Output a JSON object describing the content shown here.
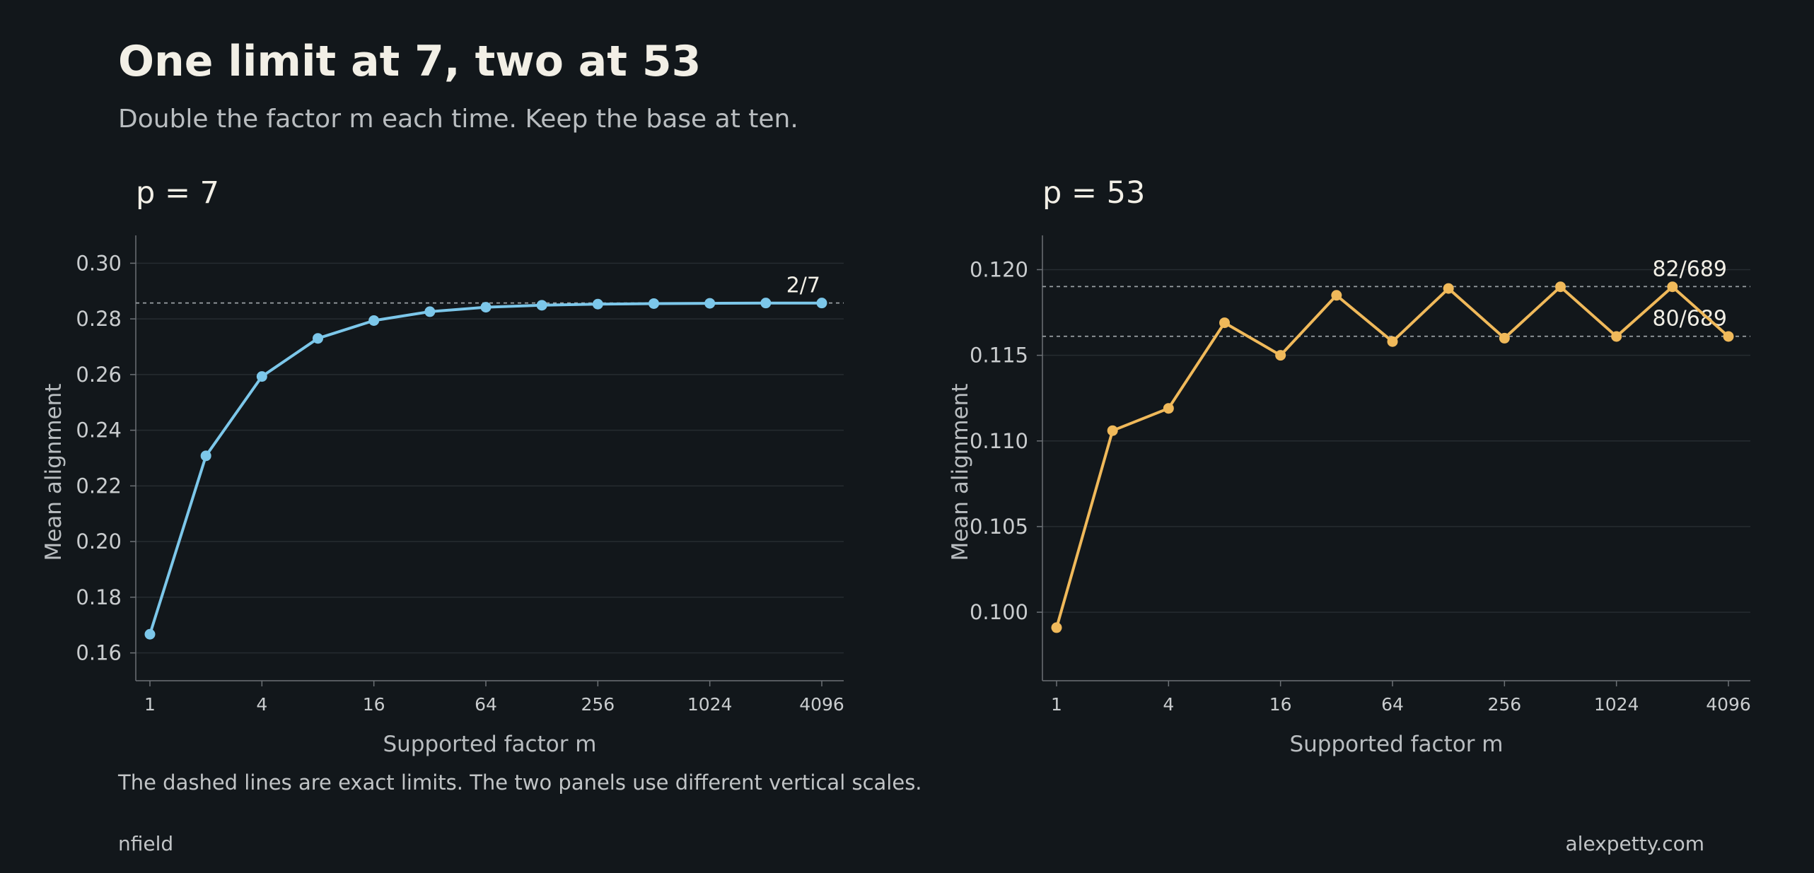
{
  "header": {
    "title": "One limit at 7, two at 53",
    "subtitle": "Double the factor m each time. Keep the base at ten."
  },
  "footer": {
    "note": "The dashed lines are exact limits. The two panels use different vertical scales.",
    "credit_left": "nfield",
    "credit_right": "alexpetty.com"
  },
  "colors": {
    "background": "#12171b",
    "series_p7": "#7cc7ea",
    "series_p53": "#f0b95a",
    "grid": "#262c31",
    "axis": "#6c7176",
    "reference_line": "#9aa0a4"
  },
  "chart_data": [
    {
      "type": "line",
      "title": "p = 7",
      "xlabel": "Supported factor m",
      "ylabel": "Mean alignment",
      "x_scale": "log2",
      "x": [
        1,
        2,
        4,
        8,
        16,
        32,
        64,
        128,
        256,
        512,
        1024,
        2048,
        4096
      ],
      "xticks": [
        1,
        4,
        16,
        64,
        256,
        1024,
        4096
      ],
      "xtick_labels": [
        "1",
        "4",
        "16",
        "64",
        "256",
        "1024",
        "4096"
      ],
      "ylim": [
        0.15,
        0.31
      ],
      "yticks": [
        0.16,
        0.18,
        0.2,
        0.22,
        0.24,
        0.26,
        0.28,
        0.3
      ],
      "ytick_labels": [
        "0.16",
        "0.18",
        "0.20",
        "0.22",
        "0.24",
        "0.26",
        "0.28",
        "0.30"
      ],
      "grid": true,
      "series": [
        {
          "values": [
            0.1667,
            0.2308,
            0.2593,
            0.273,
            0.2794,
            0.2826,
            0.2842,
            0.2849,
            0.2853,
            0.2855,
            0.2856,
            0.2857,
            0.2857
          ]
        }
      ],
      "reference_lines": [
        {
          "label": "2/7",
          "value": 0.285714
        }
      ]
    },
    {
      "type": "line",
      "title": "p = 53",
      "xlabel": "Supported factor m",
      "ylabel": "Mean alignment",
      "x_scale": "log2",
      "x": [
        1,
        2,
        4,
        8,
        16,
        32,
        64,
        128,
        256,
        512,
        1024,
        2048,
        4096
      ],
      "xticks": [
        1,
        4,
        16,
        64,
        256,
        1024,
        4096
      ],
      "xtick_labels": [
        "1",
        "4",
        "16",
        "64",
        "256",
        "1024",
        "4096"
      ],
      "ylim": [
        0.096,
        0.122
      ],
      "yticks": [
        0.1,
        0.105,
        0.11,
        0.115,
        0.12
      ],
      "ytick_labels": [
        "0.100",
        "0.105",
        "0.110",
        "0.115",
        "0.120"
      ],
      "grid": true,
      "series": [
        {
          "values": [
            0.0991,
            0.1106,
            0.1119,
            0.1169,
            0.115,
            0.1185,
            0.1158,
            0.1189,
            0.116,
            0.119,
            0.1161,
            0.119,
            0.1161
          ]
        }
      ],
      "reference_lines": [
        {
          "label": "82/689",
          "value": 0.119013
        },
        {
          "label": "80/689",
          "value": 0.11611
        }
      ]
    }
  ]
}
